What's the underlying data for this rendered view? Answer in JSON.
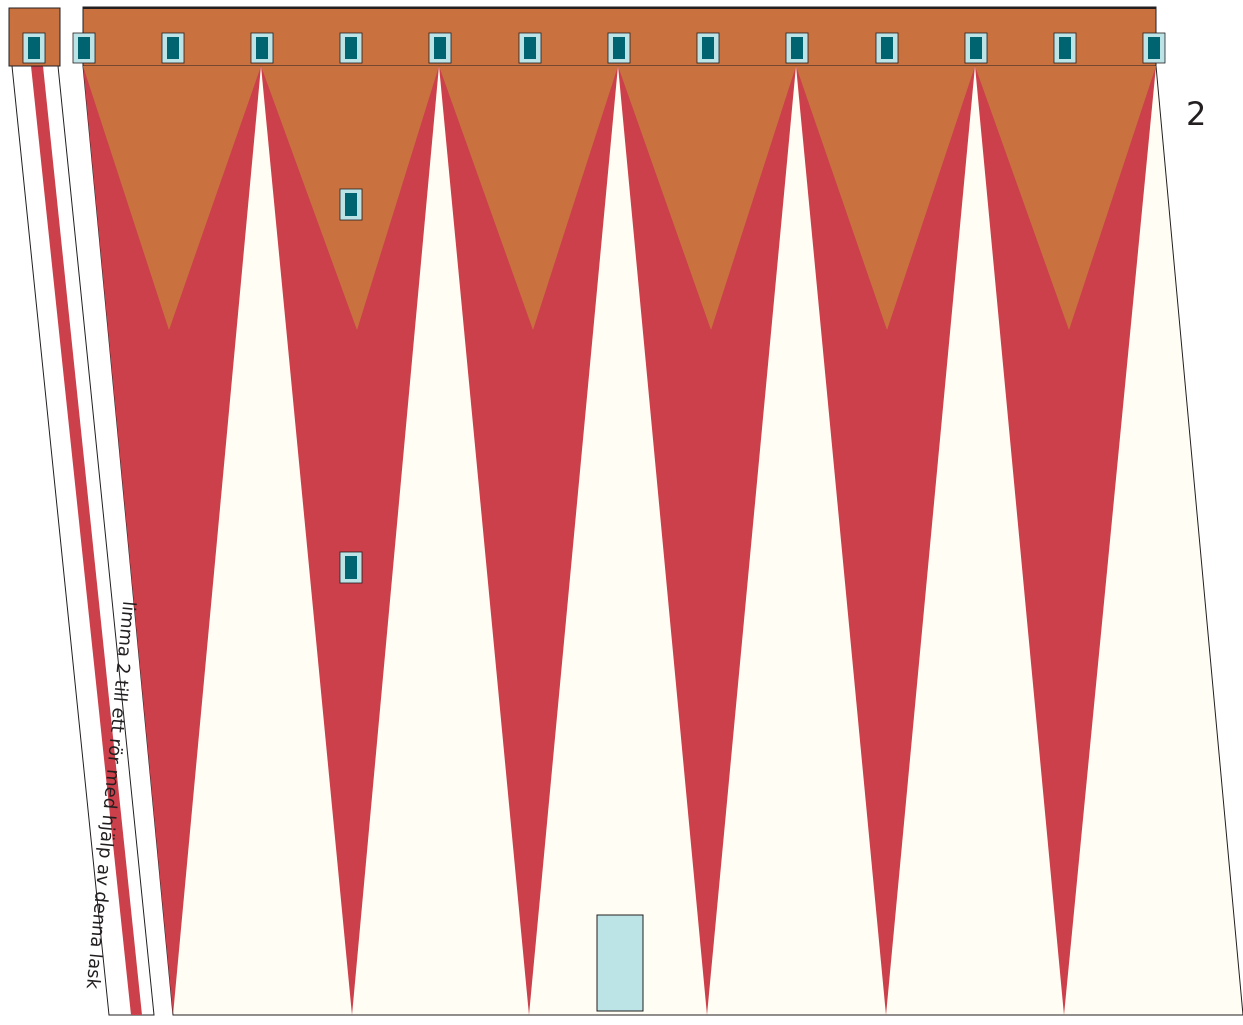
{
  "piece": {
    "number": "2"
  },
  "glue_tab": {
    "instruction": "limma 2 till ett rör med hjälp av denna lask"
  },
  "colors": {
    "roof": "#c97240",
    "stripe_red": "#cb404a",
    "cream": "#fffdf4",
    "window_frame": "#bce3e6",
    "window_glass": "#006470",
    "door": "#bce3e6",
    "outline": "#231f20"
  },
  "icons": {
    "window": "window-icon",
    "door": "door-icon"
  }
}
